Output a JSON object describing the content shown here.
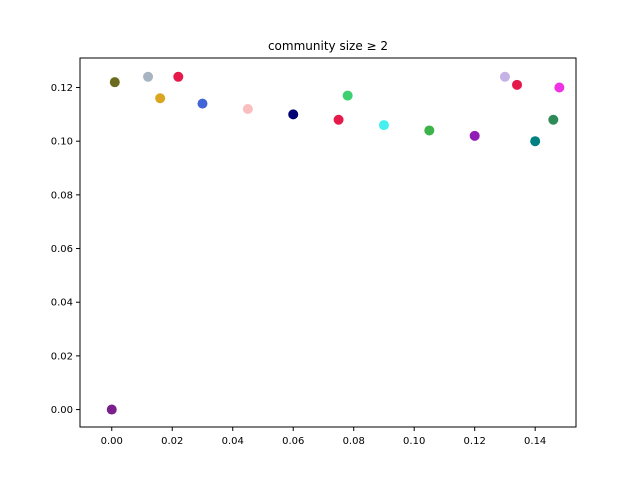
{
  "chart_data": {
    "type": "scatter",
    "title": "community size ≥ 2",
    "xlabel": "",
    "ylabel": "",
    "xlim": [
      -0.0105,
      0.1535
    ],
    "ylim": [
      -0.0065,
      0.131
    ],
    "x_ticks": [
      0.0,
      0.02,
      0.04,
      0.06,
      0.08,
      0.1,
      0.12,
      0.14
    ],
    "x_tick_labels": [
      "0.00",
      "0.02",
      "0.04",
      "0.06",
      "0.08",
      "0.10",
      "0.12",
      "0.14"
    ],
    "y_ticks": [
      0.0,
      0.02,
      0.04,
      0.06,
      0.08,
      0.1,
      0.12
    ],
    "y_tick_labels": [
      "0.00",
      "0.02",
      "0.04",
      "0.06",
      "0.08",
      "0.10",
      "0.12"
    ],
    "grid": false,
    "legend": "none",
    "marker": "circle",
    "palette": [
      "#e6194b",
      "#3cb44b",
      "#911eb4",
      "#46f0f0",
      "#f032e6",
      "#008080",
      "#9a6324",
      "#800000",
      "#000075",
      "#808000",
      "#ffe119",
      "#4363d8",
      "#f58231",
      "#aaffc3",
      "#fabebe",
      "#e6beff",
      "#a9a9a9",
      "#1abc9c",
      "#2e8b57",
      "#ff69b4",
      "#87cefa",
      "#dda0dd",
      "#20b2aa",
      "#daa520",
      "#8fbc8f",
      "#b22222",
      "#c71585",
      "#9370db",
      "#7cfc00",
      "#00ced1"
    ],
    "points": [
      {
        "x": 0.0,
        "y": 0.0,
        "color": "#7b1f8c"
      },
      {
        "x": 0.001,
        "y": 0.122,
        "color": "#6b6b20"
      },
      {
        "x": 0.012,
        "y": 0.124,
        "color": "#a9b4c2"
      },
      {
        "x": 0.022,
        "y": 0.124,
        "color": "#e6194b"
      },
      {
        "x": 0.13,
        "y": 0.124,
        "color": "#c5b3e6"
      },
      {
        "x": 0.134,
        "y": 0.121,
        "color": "#e6194b"
      },
      {
        "x": 0.078,
        "y": 0.117,
        "color": "#3cd070"
      },
      {
        "x": 0.148,
        "y": 0.12,
        "color": "#f032e6"
      },
      {
        "x": 0.146,
        "y": 0.108,
        "color": "#2e8b57"
      },
      {
        "x": 0.016,
        "y": 0.116,
        "color": "#daa520"
      },
      {
        "x": 0.03,
        "y": 0.114,
        "color": "#4363d8"
      },
      {
        "x": 0.045,
        "y": 0.112,
        "color": "#fabebe"
      },
      {
        "x": 0.06,
        "y": 0.11,
        "color": "#000075"
      },
      {
        "x": 0.075,
        "y": 0.108,
        "color": "#e6194b"
      },
      {
        "x": 0.09,
        "y": 0.106,
        "color": "#46f0f0"
      },
      {
        "x": 0.105,
        "y": 0.104,
        "color": "#3cb44b"
      },
      {
        "x": 0.12,
        "y": 0.102,
        "color": "#911eb4"
      },
      {
        "x": 0.14,
        "y": 0.1,
        "color": "#008080"
      }
    ]
  }
}
